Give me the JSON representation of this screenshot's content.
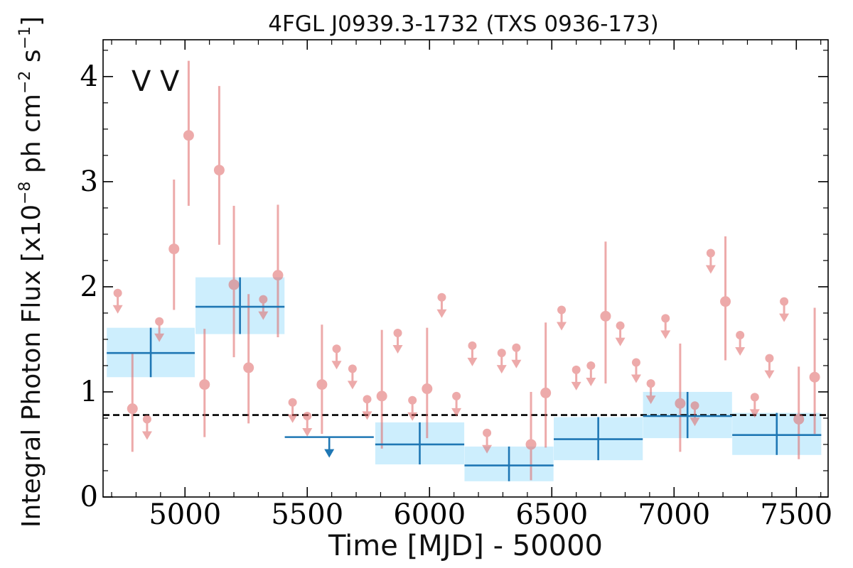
{
  "chart_data": {
    "type": "scatter",
    "title": "4FGL J0939.3-1732 (TXS 0936-173)",
    "xlabel": "Time [MJD] - 50000",
    "ylabel": "Integral Photon Flux [x10",
    "ylabel_exp1": "−8",
    "ylabel_mid": " ph cm",
    "ylabel_exp2": "−2",
    "ylabel_mid2": " s",
    "ylabel_exp3": "−1",
    "ylabel_end": "]",
    "xlim": [
      4665,
      7630
    ],
    "ylim": [
      0,
      4.35
    ],
    "xticks": [
      5000,
      5500,
      6000,
      6500,
      7000,
      7500
    ],
    "yticks": [
      0,
      1,
      2,
      3,
      4
    ],
    "legend_markers": [
      "V",
      "V"
    ],
    "legend_colors": [
      "#1f77b4",
      "#d62728"
    ],
    "reference_level": 0.78,
    "series": [
      {
        "color": "#1f77b4",
        "fill": "#cdeefd",
        "points": [
          {
            "x": 4860,
            "xerr": 180,
            "y": 1.37,
            "lo": 1.14,
            "hi": 1.61
          },
          {
            "x": 5225,
            "xerr": 182,
            "y": 1.81,
            "lo": 1.55,
            "hi": 2.09
          },
          {
            "x": 5590,
            "xerr": 182,
            "y": 0.57,
            "upper_limit": true
          },
          {
            "x": 5960,
            "xerr": 182,
            "y": 0.5,
            "lo": 0.31,
            "hi": 0.71
          },
          {
            "x": 6325,
            "xerr": 182,
            "y": 0.3,
            "lo": 0.15,
            "hi": 0.48
          },
          {
            "x": 6690,
            "xerr": 182,
            "y": 0.55,
            "lo": 0.35,
            "hi": 0.76
          },
          {
            "x": 7055,
            "xerr": 182,
            "y": 0.77,
            "lo": 0.56,
            "hi": 1.0
          },
          {
            "x": 7420,
            "xerr": 182,
            "y": 0.59,
            "lo": 0.4,
            "hi": 0.8
          }
        ]
      },
      {
        "color": "#e06666",
        "points": [
          {
            "x": 4725,
            "y": 1.94,
            "upper_limit": true
          },
          {
            "x": 4785,
            "y": 0.84,
            "lo": 0.43,
            "hi": 1.37
          },
          {
            "x": 4845,
            "y": 0.74,
            "upper_limit": true
          },
          {
            "x": 4895,
            "y": 1.67,
            "upper_limit": true
          },
          {
            "x": 4955,
            "y": 2.36,
            "lo": 1.78,
            "hi": 3.02
          },
          {
            "x": 5015,
            "y": 3.44,
            "lo": 2.77,
            "hi": 4.15
          },
          {
            "x": 5080,
            "y": 1.07,
            "lo": 0.57,
            "hi": 1.6
          },
          {
            "x": 5140,
            "y": 3.11,
            "lo": 2.4,
            "hi": 3.91
          },
          {
            "x": 5200,
            "y": 2.02,
            "lo": 1.33,
            "hi": 2.77
          },
          {
            "x": 5260,
            "y": 1.23,
            "lo": 0.7,
            "hi": 1.93
          },
          {
            "x": 5320,
            "y": 1.88,
            "upper_limit": true
          },
          {
            "x": 5380,
            "y": 2.11,
            "lo": 1.52,
            "hi": 2.78
          },
          {
            "x": 5440,
            "y": 0.9,
            "upper_limit": true
          },
          {
            "x": 5500,
            "y": 0.77,
            "upper_limit": true
          },
          {
            "x": 5560,
            "y": 1.07,
            "lo": 0.6,
            "hi": 1.64
          },
          {
            "x": 5620,
            "y": 1.41,
            "upper_limit": true
          },
          {
            "x": 5685,
            "y": 1.22,
            "upper_limit": true
          },
          {
            "x": 5745,
            "y": 0.93,
            "upper_limit": true
          },
          {
            "x": 5805,
            "y": 0.96,
            "lo": 0.46,
            "hi": 1.59
          },
          {
            "x": 5870,
            "y": 1.56,
            "upper_limit": true
          },
          {
            "x": 5930,
            "y": 0.92,
            "upper_limit": true
          },
          {
            "x": 5990,
            "y": 1.03,
            "lo": 0.56,
            "hi": 1.61
          },
          {
            "x": 6050,
            "y": 1.9,
            "upper_limit": true
          },
          {
            "x": 6110,
            "y": 0.96,
            "upper_limit": true
          },
          {
            "x": 6175,
            "y": 1.44,
            "upper_limit": true
          },
          {
            "x": 6235,
            "y": 0.61,
            "upper_limit": true
          },
          {
            "x": 6295,
            "y": 1.37,
            "upper_limit": true
          },
          {
            "x": 6355,
            "y": 1.42,
            "upper_limit": true
          },
          {
            "x": 6415,
            "y": 0.5,
            "lo": 0.16,
            "hi": 1.0
          },
          {
            "x": 6475,
            "y": 0.99,
            "lo": 0.47,
            "hi": 1.66
          },
          {
            "x": 6540,
            "y": 1.78,
            "upper_limit": true
          },
          {
            "x": 6600,
            "y": 1.21,
            "upper_limit": true
          },
          {
            "x": 6660,
            "y": 1.25,
            "upper_limit": true
          },
          {
            "x": 6720,
            "y": 1.72,
            "lo": 1.08,
            "hi": 2.43
          },
          {
            "x": 6780,
            "y": 1.63,
            "upper_limit": true
          },
          {
            "x": 6845,
            "y": 1.28,
            "upper_limit": true
          },
          {
            "x": 6905,
            "y": 1.08,
            "upper_limit": true
          },
          {
            "x": 6965,
            "y": 1.7,
            "upper_limit": true
          },
          {
            "x": 7025,
            "y": 0.89,
            "lo": 0.43,
            "hi": 1.46
          },
          {
            "x": 7085,
            "y": 0.87,
            "upper_limit": true
          },
          {
            "x": 7150,
            "y": 2.32,
            "upper_limit": true
          },
          {
            "x": 7210,
            "y": 1.86,
            "lo": 1.3,
            "hi": 2.48
          },
          {
            "x": 7270,
            "y": 1.54,
            "upper_limit": true
          },
          {
            "x": 7330,
            "y": 0.95,
            "upper_limit": true
          },
          {
            "x": 7390,
            "y": 1.32,
            "upper_limit": true
          },
          {
            "x": 7450,
            "y": 1.86,
            "upper_limit": true
          },
          {
            "x": 7510,
            "y": 0.74,
            "lo": 0.36,
            "hi": 1.24
          },
          {
            "x": 7575,
            "y": 1.14,
            "lo": 0.6,
            "hi": 1.8
          }
        ]
      }
    ]
  }
}
